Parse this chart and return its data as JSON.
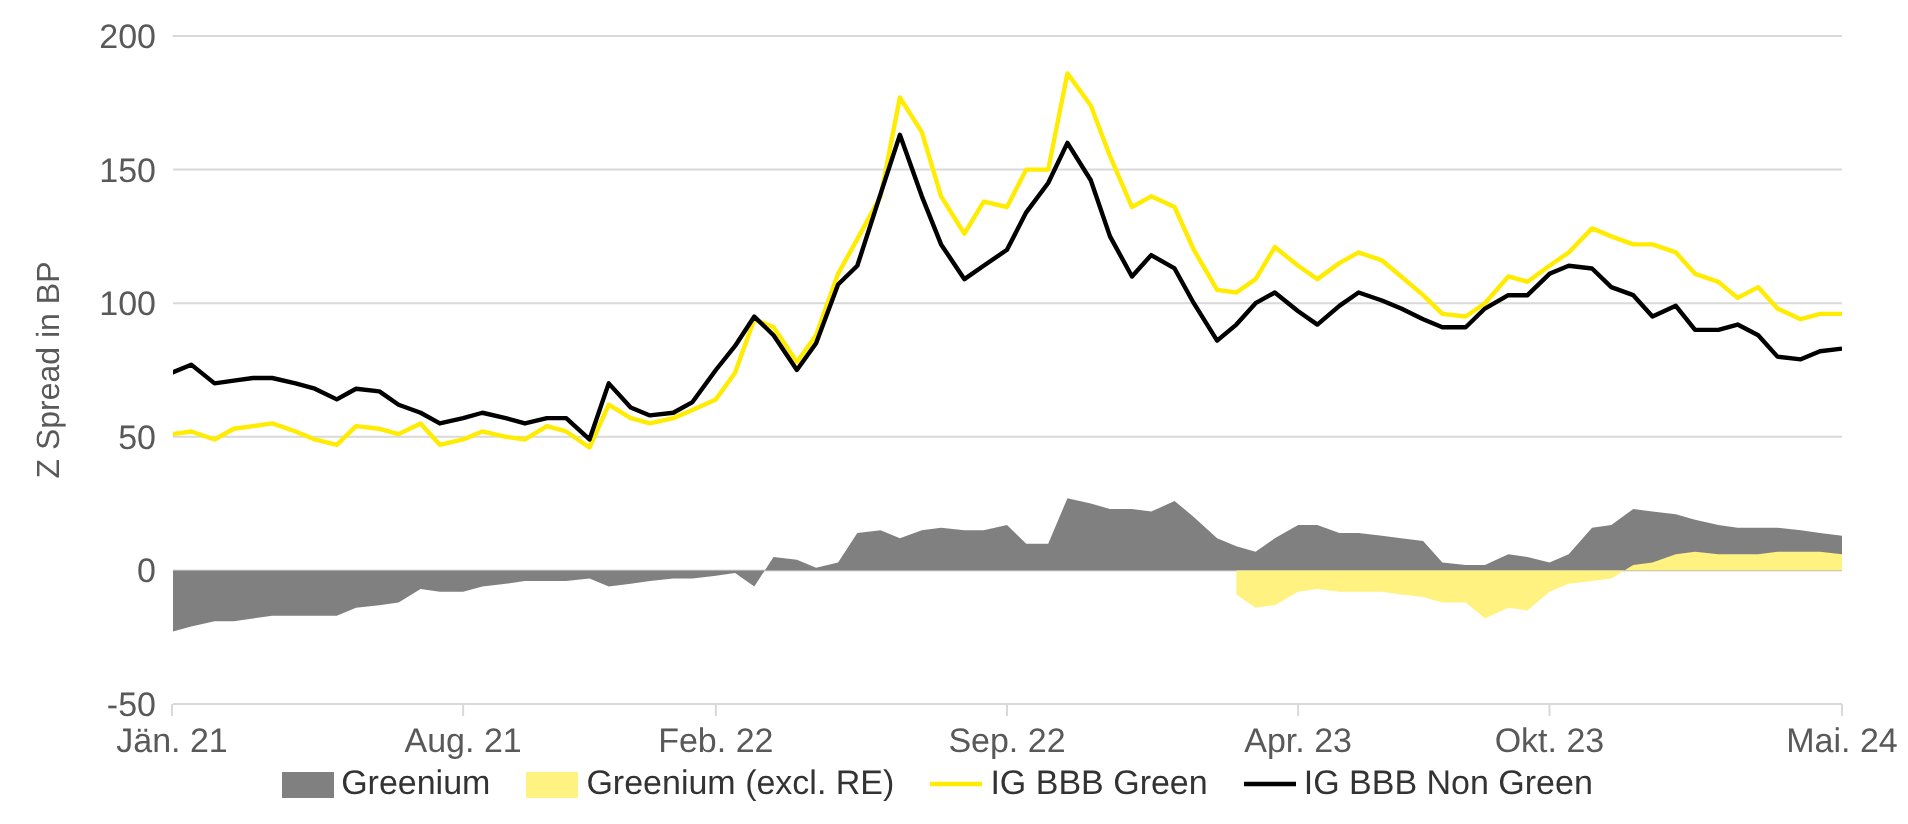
{
  "chart_data": {
    "type": "line",
    "ylabel": "Z Spread in BP",
    "ylim": [
      -50,
      200
    ],
    "yticks": [
      -50,
      0,
      50,
      100,
      150,
      200
    ],
    "grid": "y",
    "legend": "bottom",
    "xlim": [
      "2021-01-01",
      "2024-05-01"
    ],
    "xticks": [
      {
        "value": "2021-01-01",
        "label": "Jän. 21"
      },
      {
        "value": "2021-08-01",
        "label": "Aug. 21"
      },
      {
        "value": "2022-02-01",
        "label": "Feb. 22"
      },
      {
        "value": "2022-09-01",
        "label": "Sep. 22"
      },
      {
        "value": "2023-04-01",
        "label": "Apr. 23"
      },
      {
        "value": "2023-10-01",
        "label": "Okt. 23"
      },
      {
        "value": "2024-05-01",
        "label": "Mai. 24"
      }
    ],
    "x": [
      "2021-01-01",
      "2021-01-15",
      "2021-02-01",
      "2021-02-15",
      "2021-03-01",
      "2021-03-15",
      "2021-04-01",
      "2021-04-15",
      "2021-05-01",
      "2021-05-15",
      "2021-06-01",
      "2021-06-15",
      "2021-07-01",
      "2021-07-15",
      "2021-08-01",
      "2021-08-15",
      "2021-09-01",
      "2021-09-15",
      "2021-10-01",
      "2021-10-15",
      "2021-11-01",
      "2021-11-15",
      "2021-12-01",
      "2021-12-15",
      "2022-01-01",
      "2022-01-15",
      "2022-02-01",
      "2022-02-15",
      "2022-03-01",
      "2022-03-15",
      "2022-04-01",
      "2022-04-15",
      "2022-05-01",
      "2022-05-15",
      "2022-06-01",
      "2022-06-15",
      "2022-07-01",
      "2022-07-15",
      "2022-08-01",
      "2022-08-15",
      "2022-09-01",
      "2022-09-15",
      "2022-10-01",
      "2022-10-15",
      "2022-11-01",
      "2022-11-15",
      "2022-12-01",
      "2022-12-15",
      "2023-01-01",
      "2023-01-15",
      "2023-02-01",
      "2023-02-15",
      "2023-03-01",
      "2023-03-15",
      "2023-04-01",
      "2023-04-15",
      "2023-05-01",
      "2023-05-15",
      "2023-06-01",
      "2023-06-15",
      "2023-07-01",
      "2023-07-15",
      "2023-08-01",
      "2023-08-15",
      "2023-09-01",
      "2023-09-15",
      "2023-10-01",
      "2023-10-15",
      "2023-11-01",
      "2023-11-15",
      "2023-12-01",
      "2023-12-15",
      "2024-01-01",
      "2024-01-15",
      "2024-02-01",
      "2024-02-15",
      "2024-03-01",
      "2024-03-15",
      "2024-04-01",
      "2024-04-15",
      "2024-05-01"
    ],
    "series": [
      {
        "name": "Greenium",
        "type": "area",
        "color": "#808080",
        "values": [
          -23,
          -21,
          -19,
          -19,
          -18,
          -17,
          -17,
          -17,
          -17,
          -14,
          -13,
          -12,
          -7,
          -8,
          -8,
          -6,
          -5,
          -4,
          -4,
          -4,
          -3,
          -6,
          -5,
          -4,
          -3,
          -3,
          -2,
          -1,
          -6,
          5,
          4,
          1,
          3,
          14,
          15,
          12,
          15,
          16,
          15,
          15,
          17,
          10,
          10,
          27,
          25,
          23,
          23,
          22,
          26,
          20,
          12,
          9,
          7,
          12,
          17,
          17,
          14,
          14,
          13,
          12,
          11,
          3,
          2,
          2,
          6,
          5,
          3,
          6,
          16,
          17,
          23,
          22,
          21,
          19,
          17,
          16,
          16,
          16,
          15,
          14,
          13
        ]
      },
      {
        "name": "Greenium (excl. RE)",
        "type": "area",
        "color": "#fff280",
        "values": [
          null,
          null,
          null,
          null,
          null,
          null,
          null,
          null,
          null,
          null,
          null,
          null,
          null,
          null,
          null,
          null,
          null,
          null,
          null,
          null,
          null,
          null,
          null,
          null,
          null,
          null,
          null,
          null,
          null,
          null,
          null,
          null,
          null,
          null,
          null,
          null,
          null,
          null,
          null,
          null,
          null,
          null,
          null,
          null,
          null,
          null,
          null,
          null,
          null,
          null,
          null,
          -9,
          -14,
          -13,
          -8,
          -7,
          -8,
          -8,
          -8,
          -9,
          -10,
          -12,
          -12,
          -18,
          -14,
          -15,
          -8,
          -5,
          -4,
          -3,
          2,
          3,
          6,
          7,
          6,
          6,
          6,
          7,
          7,
          7,
          6
        ]
      },
      {
        "name": "IG BBB Green",
        "color": "#ffec00",
        "values": [
          51,
          52,
          49,
          53,
          54,
          55,
          52,
          49,
          47,
          54,
          53,
          51,
          55,
          47,
          49,
          52,
          50,
          49,
          54,
          52,
          46,
          62,
          57,
          55,
          57,
          60,
          64,
          74,
          94,
          91,
          78,
          88,
          111,
          124,
          140,
          177,
          164,
          140,
          126,
          138,
          136,
          150,
          150,
          186,
          174,
          155,
          136,
          140,
          136,
          120,
          105,
          104,
          109,
          121,
          114,
          109,
          115,
          119,
          116,
          110,
          103,
          96,
          95,
          100,
          110,
          108,
          114,
          119,
          128,
          125,
          122,
          122,
          119,
          111,
          108,
          102,
          106,
          98,
          94,
          96,
          96
        ]
      },
      {
        "name": "IG BBB Non Green",
        "color": "#000000",
        "values": [
          74,
          77,
          70,
          71,
          72,
          72,
          70,
          68,
          64,
          68,
          67,
          62,
          59,
          55,
          57,
          59,
          57,
          55,
          57,
          57,
          49,
          70,
          61,
          58,
          59,
          63,
          75,
          84,
          95,
          88,
          75,
          85,
          107,
          114,
          141,
          163,
          140,
          122,
          109,
          114,
          120,
          134,
          145,
          160,
          146,
          125,
          110,
          118,
          113,
          100,
          86,
          92,
          100,
          104,
          97,
          92,
          99,
          104,
          101,
          98,
          94,
          91,
          91,
          98,
          103,
          103,
          111,
          114,
          113,
          106,
          103,
          95,
          99,
          90,
          90,
          92,
          88,
          80,
          79,
          82,
          83
        ]
      }
    ]
  }
}
